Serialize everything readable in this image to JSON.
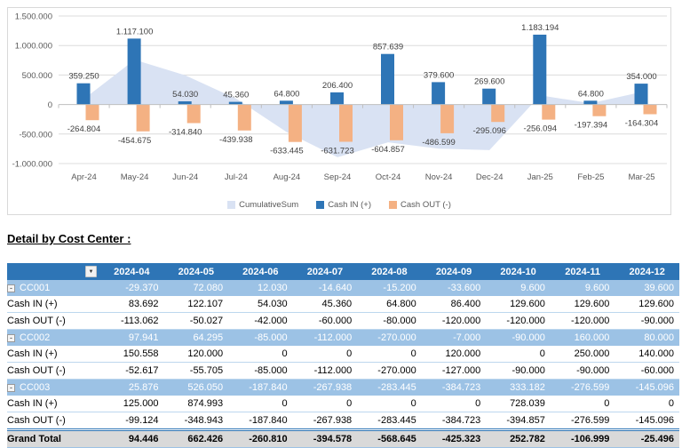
{
  "chart_data": {
    "type": "combo",
    "categories": [
      "Apr-24",
      "May-24",
      "Jun-24",
      "Jul-24",
      "Aug-24",
      "Sep-24",
      "Oct-24",
      "Nov-24",
      "Dec-24",
      "Jan-25",
      "Feb-25",
      "Mar-25"
    ],
    "y_axis": {
      "min": -1000000,
      "max": 1500000,
      "tick_step": 500000,
      "tick_labels": [
        "1.500.000",
        "1.000.000",
        "500.000",
        "0",
        "-500.000",
        "-1.000.000"
      ]
    },
    "grid": true,
    "legend_position": "bottom",
    "number_format": "dot-thousands",
    "series": [
      {
        "name": "CumulativeSum",
        "kind": "area",
        "color": "#D9E2F3",
        "values": [
          94446,
          756871,
          496061,
          101483,
          -467162,
          -892485,
          -639703,
          -746702,
          -772198,
          154902,
          22308,
          212004
        ]
      },
      {
        "name": "Cash IN (+)",
        "kind": "bar",
        "color": "#2E75B6",
        "data_labels": true,
        "values": [
          359250,
          1117100,
          54030,
          45360,
          64800,
          206400,
          857639,
          379600,
          269600,
          1183194,
          64800,
          354000
        ]
      },
      {
        "name": "Cash OUT (-)",
        "kind": "bar",
        "color": "#F4B183",
        "data_labels": true,
        "values": [
          -264804,
          -454675,
          -314840,
          -439938,
          -633445,
          -631723,
          -604857,
          -486599,
          -295096,
          -256094,
          -197394,
          -164304
        ]
      }
    ],
    "label_color": "#404040",
    "axis_text_color": "#595959",
    "gridline_color": "#DCDCDC",
    "axis_line_color": "#BFBFBF"
  },
  "detail": {
    "title": "Detail by Cost Center :",
    "filter_icon": "chevron-down",
    "columns": [
      "2024-04",
      "2024-05",
      "2024-06",
      "2024-07",
      "2024-08",
      "2024-09",
      "2024-10",
      "2024-11",
      "2024-12"
    ],
    "groups": [
      {
        "label": "CC001",
        "totals": [
          -29370,
          72080,
          12030,
          -14640,
          -15200,
          -33600,
          9600,
          9600,
          39600
        ],
        "rows": [
          {
            "label": "Cash IN (+)",
            "values": [
              83692,
              122107,
              54030,
              45360,
              64800,
              86400,
              129600,
              129600,
              129600
            ]
          },
          {
            "label": "Cash OUT (-)",
            "values": [
              -113062,
              -50027,
              -42000,
              -60000,
              -80000,
              -120000,
              -120000,
              -120000,
              -90000
            ]
          }
        ]
      },
      {
        "label": "CC002",
        "totals": [
          97941,
          64295,
          -85000,
          -112000,
          -270000,
          -7000,
          -90000,
          160000,
          80000
        ],
        "rows": [
          {
            "label": "Cash IN (+)",
            "values": [
              150558,
              120000,
              0,
              0,
              0,
              120000,
              0,
              250000,
              140000
            ]
          },
          {
            "label": "Cash OUT (-)",
            "values": [
              -52617,
              -55705,
              -85000,
              -112000,
              -270000,
              -127000,
              -90000,
              -90000,
              -60000
            ]
          }
        ]
      },
      {
        "label": "CC003",
        "totals": [
          25876,
          526050,
          -187840,
          -267938,
          -283445,
          -384723,
          333182,
          -276599,
          -145096
        ],
        "rows": [
          {
            "label": "Cash IN (+)",
            "values": [
              125000,
              874993,
              0,
              0,
              0,
              0,
              728039,
              0,
              0
            ]
          },
          {
            "label": "Cash OUT (-)",
            "values": [
              -99124,
              -348943,
              -187840,
              -267938,
              -283445,
              -384723,
              -394857,
              -276599,
              -145096
            ]
          }
        ]
      }
    ],
    "grand_total": {
      "label": "Grand Total",
      "values": [
        94446,
        662426,
        -260810,
        -394578,
        -568645,
        -425323,
        252782,
        -106999,
        -25496
      ]
    },
    "colors": {
      "header_bg": "#2E75B6",
      "group_row_bg": "#9CC2E5",
      "row_border": "#BDD7EE",
      "total_bg": "#D9D9D9"
    }
  }
}
